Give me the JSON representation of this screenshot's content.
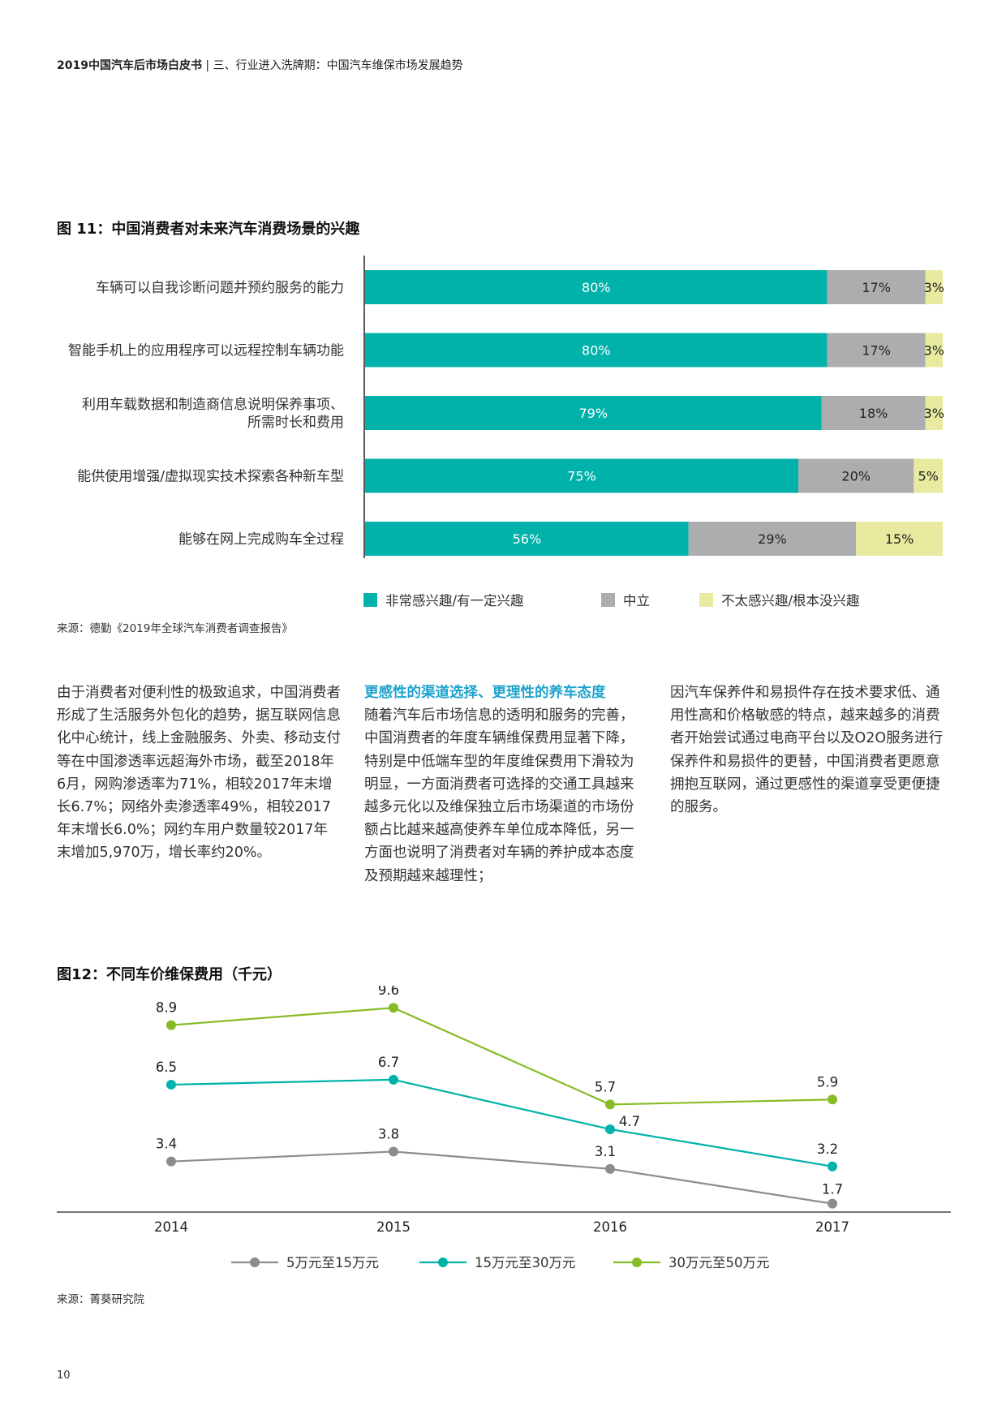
{
  "header": {
    "doc_title": "2019中国汽车后市场白皮书",
    "separator": " | ",
    "section": "三、行业进入洗牌期：中国汽车维保市场发展趋势"
  },
  "figure1": {
    "title": "图 11：中国消费者对未来汽车消费场景的兴趣",
    "source": "来源：德勤《2019年全球汽车消费者调查报告》"
  },
  "figure2": {
    "title": "图12：不同车价维保费用（千元）",
    "source": "来源：菁葵研究院"
  },
  "colors": {
    "teal": "#00B2A9",
    "gray": "#ABADAE",
    "yellow": "#E8EB9F",
    "green": "#86BC25",
    "dark_gray": "#8C8C8C",
    "accent_blue": "#1FA3CC"
  },
  "chart_data": [
    {
      "type": "bar",
      "orientation": "horizontal-stacked-percent",
      "categories": [
        [
          "车辆可以自我诊断问题并预约服务的能力"
        ],
        [
          "智能手机上的应用程序可以远程控制车辆功能"
        ],
        [
          "利用车载数据和制造商信息说明保养事项、",
          "所需时长和费用"
        ],
        [
          "能供使用增强/虚拟现实技术探索各种新车型"
        ],
        [
          "能够在网上完成购车全过程"
        ]
      ],
      "series": [
        {
          "name": "非常感兴趣/有一定兴趣",
          "values": [
            80,
            80,
            79,
            75,
            56
          ],
          "color": "#00B2A9",
          "label_color": "#ffffff"
        },
        {
          "name": "中立",
          "values": [
            17,
            17,
            18,
            20,
            29
          ],
          "color": "#ABADAE",
          "label_color": "#222222"
        },
        {
          "name": "不太感兴趣/根本没兴趣",
          "values": [
            3,
            3,
            3,
            5,
            15
          ],
          "color": "#E8EB9F",
          "label_color": "#222222"
        }
      ],
      "value_suffix": "%",
      "xlim": [
        0,
        100
      ],
      "legend_position": "bottom"
    },
    {
      "type": "line",
      "x": [
        "2014",
        "2015",
        "2016",
        "2017"
      ],
      "series": [
        {
          "name": "5万元至15万元",
          "values": [
            3.4,
            3.8,
            3.1,
            1.7
          ],
          "color": "#8C8C8C"
        },
        {
          "name": "15万元至30万元",
          "values": [
            6.5,
            6.7,
            4.7,
            3.2
          ],
          "color": "#00B2A9"
        },
        {
          "name": "30万元至50万元",
          "values": [
            8.9,
            9.6,
            5.7,
            5.9
          ],
          "color": "#86BC25"
        }
      ],
      "ylim": [
        1.0,
        10.0
      ],
      "legend_position": "bottom"
    }
  ],
  "body": {
    "col1": "由于消费者对便利性的极致追求，中国消费者形成了生活服务外包化的趋势，据互联网信息化中心统计，线上金融服务、外卖、移动支付等在中国渗透率远超海外市场，截至2018年6月，网购渗透率为71%，相较2017年末增长6.7%；网络外卖渗透率49%，相较2017年末增长6.0%；网约车用户数量较2017年末增加5,970万，增长率约20%。",
    "col2_heading": "更感性的渠道选择、更理性的养车态度",
    "col2": "随着汽车后市场信息的透明和服务的完善，中国消费者的年度车辆维保费用显著下降，特别是中低端车型的年度维保费用下滑较为明显，一方面消费者可选择的交通工具越来越多元化以及维保独立后市场渠道的市场份额占比越来越高使养车单位成本降低，另一方面也说明了消费者对车辆的养护成本态度及预期越来越理性；",
    "col3": "因汽车保养件和易损件存在技术要求低、通用性高和价格敏感的特点，越来越多的消费者开始尝试通过电商平台以及O2O服务进行保养件和易损件的更替，中国消费者更愿意拥抱互联网，通过更感性的渠道享受更便捷的服务。"
  },
  "page_number": "10"
}
